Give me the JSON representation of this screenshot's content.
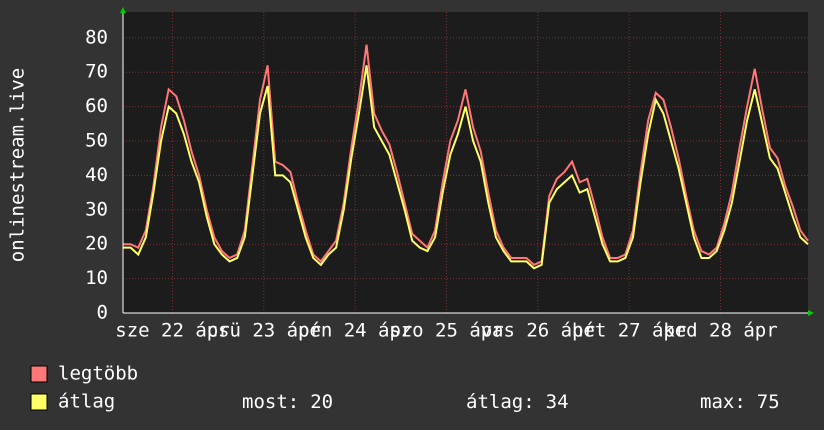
{
  "chart_data": {
    "type": "line",
    "y_label": "onlinestream.live",
    "xlim": [
      0,
      180
    ],
    "xticks": [
      {
        "value": 13,
        "label": "sze 22 ápr"
      },
      {
        "value": 37,
        "label": "csü 23 ápr"
      },
      {
        "value": 61,
        "label": "pén 24 ápr"
      },
      {
        "value": 85,
        "label": "szo 25 ápr"
      },
      {
        "value": 109,
        "label": "vas 26 ápr"
      },
      {
        "value": 133,
        "label": "hét 27 ápr"
      },
      {
        "value": 157,
        "label": "ked 28 ápr"
      }
    ],
    "ylim": [
      0,
      87.5
    ],
    "yticks": [
      0,
      10,
      20,
      30,
      40,
      50,
      60,
      70,
      80
    ],
    "grid": true,
    "x": [
      0,
      2,
      4,
      6,
      8,
      10,
      12,
      14,
      16,
      18,
      20,
      22,
      24,
      26,
      28,
      30,
      32,
      34,
      36,
      38,
      40,
      42,
      44,
      46,
      48,
      50,
      52,
      54,
      56,
      58,
      60,
      62,
      64,
      66,
      68,
      70,
      72,
      74,
      76,
      78,
      80,
      82,
      84,
      86,
      88,
      90,
      92,
      94,
      96,
      98,
      100,
      102,
      104,
      106,
      108,
      110,
      112,
      114,
      116,
      118,
      120,
      122,
      124,
      126,
      128,
      130,
      132,
      134,
      136,
      138,
      140,
      142,
      144,
      146,
      148,
      150,
      152,
      154,
      156,
      158,
      160,
      162,
      164,
      166,
      168,
      170,
      172,
      174,
      176,
      178,
      180
    ],
    "series": [
      {
        "name": "legtöbb",
        "color": "#ff7777",
        "values": [
          20,
          20,
          19,
          24,
          37,
          54,
          65,
          63,
          56,
          47,
          40,
          30,
          22,
          18,
          16,
          17,
          24,
          43,
          62,
          72,
          44,
          43,
          41,
          32,
          24,
          17,
          15,
          18,
          21,
          32,
          48,
          62,
          78,
          58,
          53,
          49,
          41,
          32,
          23,
          21,
          19,
          24,
          38,
          50,
          56,
          65,
          54,
          47,
          35,
          24,
          19,
          16,
          16,
          16,
          14,
          15,
          34,
          39,
          41,
          44,
          38,
          39,
          31,
          22,
          16,
          16,
          17,
          24,
          41,
          56,
          64,
          62,
          54,
          45,
          34,
          24,
          18,
          17,
          19,
          26,
          35,
          48,
          60,
          71,
          59,
          48,
          45,
          37,
          31,
          24,
          21
        ]
      },
      {
        "name": "átlag",
        "color": "#ffff66",
        "values": [
          19,
          19,
          17,
          22,
          35,
          50,
          60,
          58,
          52,
          44,
          38,
          28,
          20,
          17,
          15,
          16,
          22,
          40,
          58,
          66,
          40,
          40,
          38,
          30,
          22,
          16,
          14,
          17,
          19,
          30,
          45,
          58,
          72,
          54,
          50,
          46,
          38,
          30,
          21,
          19,
          18,
          22,
          35,
          46,
          52,
          60,
          50,
          44,
          32,
          22,
          18,
          15,
          15,
          15,
          13,
          14,
          32,
          36,
          38,
          40,
          35,
          36,
          28,
          20,
          15,
          15,
          16,
          22,
          38,
          52,
          62,
          58,
          50,
          42,
          32,
          22,
          16,
          16,
          18,
          24,
          32,
          44,
          56,
          65,
          55,
          45,
          42,
          35,
          28,
          22,
          20
        ]
      }
    ],
    "stats": [
      {
        "label": "most:",
        "value": 20
      },
      {
        "label": "átlag:",
        "value": 34
      },
      {
        "label": "max:",
        "value": 75
      }
    ]
  }
}
